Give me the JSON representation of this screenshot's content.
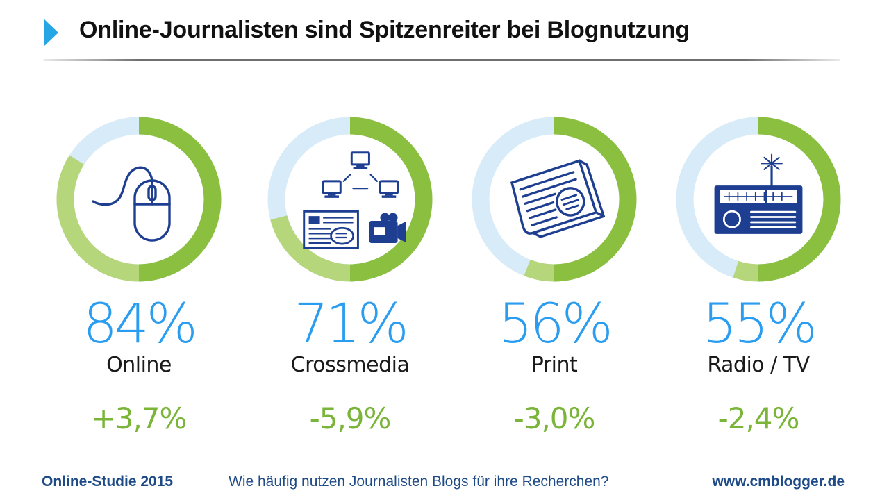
{
  "header": {
    "title": "Online-Journalisten sind Spitzenreiter bei Blognutzung"
  },
  "chart_data": {
    "type": "donut",
    "title": "Online-Journalisten sind Spitzenreiter bei Blognutzung",
    "categories": [
      "Online",
      "Crossmedia",
      "Print",
      "Radio / TV"
    ],
    "series": [
      {
        "values": [
          84,
          71,
          56,
          55
        ]
      }
    ],
    "change_labels": [
      "+3,7%",
      "-5,9%",
      "-3,0%",
      "-2,4%"
    ],
    "icons": [
      "computer-mouse-icon",
      "crossmedia-icon",
      "newspaper-icon",
      "radio-icon"
    ],
    "percent_labels": [
      "84%",
      "71%",
      "56%",
      "55%"
    ],
    "colors": {
      "accent_dark": "#8bbf3f",
      "accent_light": "#b5d67a",
      "track": "#d8ebf8",
      "percent_text": "#2a9df0",
      "change_text": "#7ab539",
      "icon": "#1e3f91"
    }
  },
  "footer": {
    "left": "Online-Studie 2015",
    "middle": "Wie häufig nutzen Journalisten Blogs für ihre Recherchen?",
    "right": "www.cmblogger.de"
  }
}
